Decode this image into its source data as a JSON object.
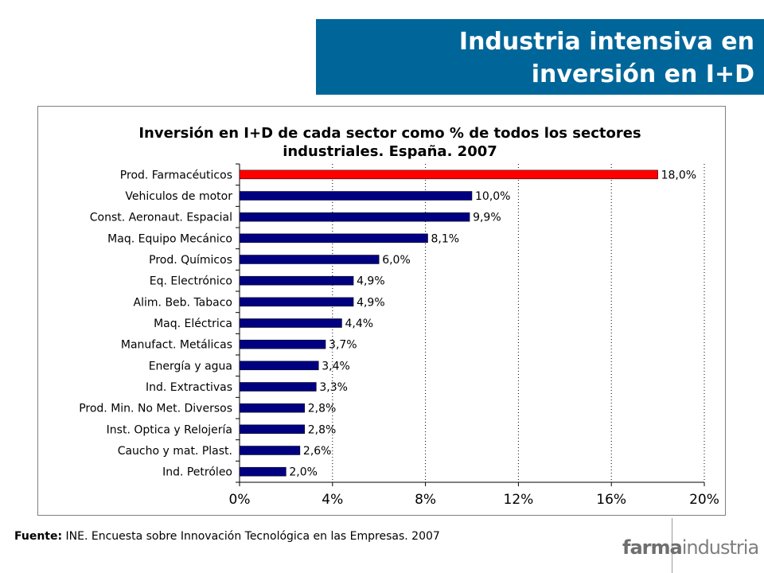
{
  "header": {
    "title_line1": "Industria intensiva en",
    "title_line2": "inversión en I+D"
  },
  "colors": {
    "banner": "#006699",
    "highlight_bar": "#FF0000",
    "bar": "#000080"
  },
  "chart_data": {
    "type": "bar",
    "orientation": "horizontal",
    "title_line1": "Inversión en I+D de cada sector como % de todos los sectores",
    "title_line2": "industriales. España. 2007",
    "categories": [
      "Prod. Farmacéuticos",
      "Vehiculos de motor",
      "Const. Aeronaut. Espacial",
      "Maq. Equipo Mecánico",
      "Prod. Químicos",
      "Eq. Electrónico",
      "Alim. Beb. Tabaco",
      "Maq. Eléctrica",
      "Manufact. Metálicas",
      "Energía y agua",
      "Ind. Extractivas",
      "Prod. Min. No Met. Diversos",
      "Inst. Optica y Relojería",
      "Caucho y mat. Plast.",
      "Ind. Petróleo"
    ],
    "values": [
      18.0,
      10.0,
      9.9,
      8.1,
      6.0,
      4.9,
      4.9,
      4.4,
      3.7,
      3.4,
      3.3,
      2.8,
      2.8,
      2.6,
      2.0
    ],
    "data_labels": [
      "18,0%",
      "10,0%",
      "9,9%",
      "8,1%",
      "6,0%",
      "4,9%",
      "4,9%",
      "4,4%",
      "3,7%",
      "3,4%",
      "3,3%",
      "2,8%",
      "2,8%",
      "2,6%",
      "2,0%"
    ],
    "highlight_index": 0,
    "xlim": [
      0,
      20
    ],
    "xticks": [
      0,
      4,
      8,
      12,
      16,
      20
    ],
    "xtick_labels": [
      "0%",
      "4%",
      "8%",
      "12%",
      "16%",
      "20%"
    ],
    "grid": "vertical-dotted",
    "legend": "none"
  },
  "footer": {
    "source_label": "Fuente:",
    "source_text": " INE. Encuesta sobre Innovación Tecnológica en las Empresas. 2007",
    "logo_bold": "farma",
    "logo_light": "industria"
  }
}
